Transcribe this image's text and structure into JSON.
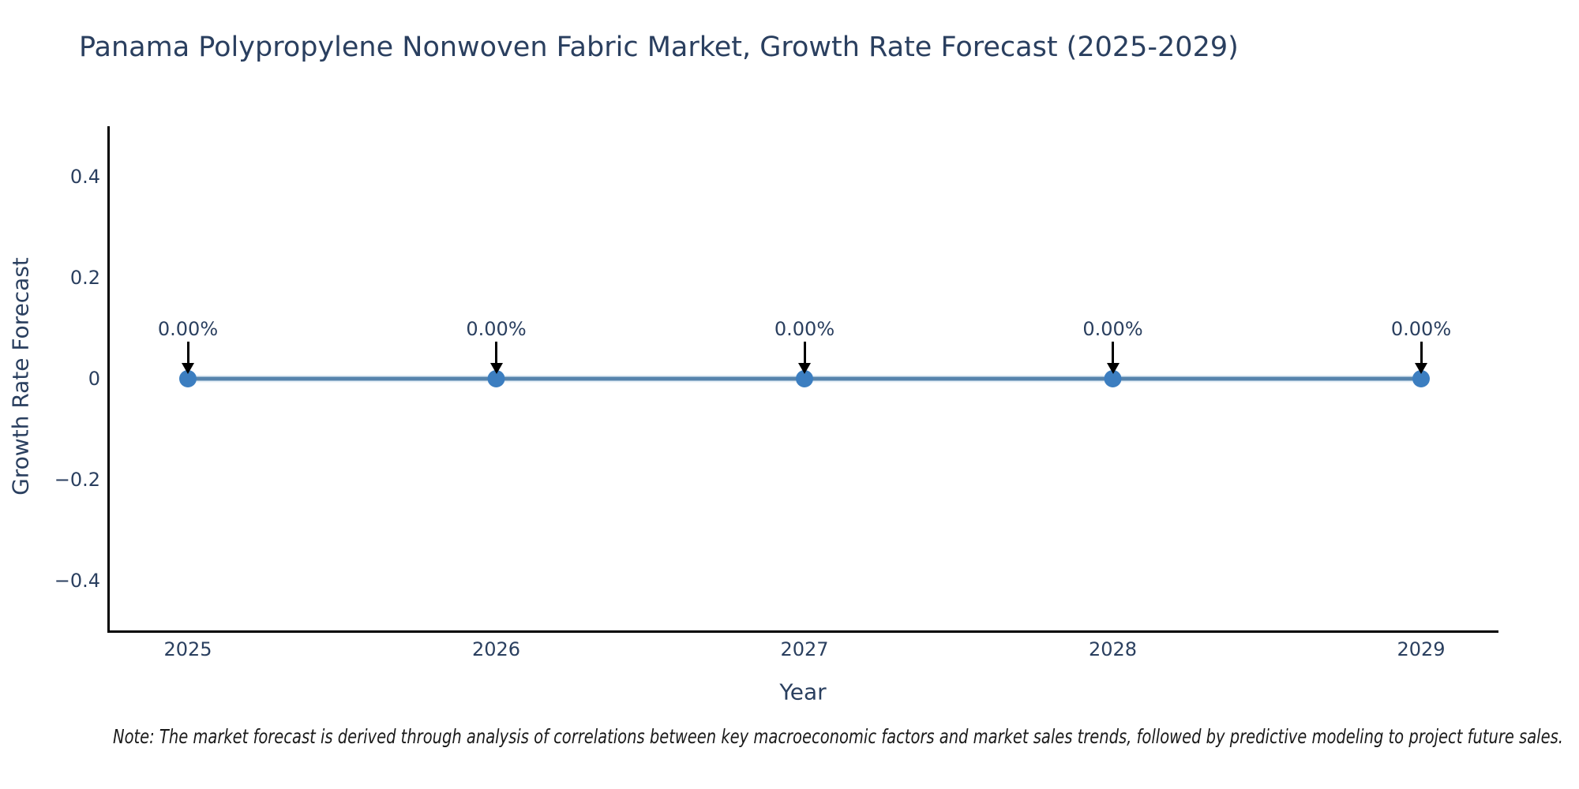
{
  "title": "Panama Polypropylene Nonwoven Fabric Market, Growth Rate Forecast (2025-2029)",
  "note": "Note: The market forecast is derived through analysis of correlations between key macroeconomic factors and market sales trends, followed by predictive modeling to project future sales.",
  "chart_data": {
    "type": "line",
    "x": [
      2025,
      2026,
      2027,
      2028,
      2029
    ],
    "y": [
      0,
      0,
      0,
      0,
      0
    ],
    "point_labels": [
      "0.00%",
      "0.00%",
      "0.00%",
      "0.00%",
      "0.00%"
    ],
    "xtick_labels": [
      "2025",
      "2026",
      "2027",
      "2028",
      "2029"
    ],
    "yticks": [
      0.4,
      0.2,
      0,
      -0.2,
      -0.4
    ],
    "ytick_labels": [
      "0.4",
      "0.2",
      "0",
      "−0.2",
      "−0.4"
    ],
    "title": "Panama Polypropylene Nonwoven Fabric Market, Growth Rate Forecast (2025-2029)",
    "xlabel": "Year",
    "ylabel": "Growth Rate Forecast",
    "ylim": [
      -0.5,
      0.5
    ],
    "grid": false,
    "legend": "none",
    "colors": {
      "line": "#5684ad",
      "line_halo": "#c3daec",
      "marker": "#3c7ec0",
      "axis": "#000000",
      "text": "#2a3f5f",
      "note_text": "#1a1a1a",
      "background": "#ffffff",
      "annotation_arrow": "#000000"
    }
  }
}
